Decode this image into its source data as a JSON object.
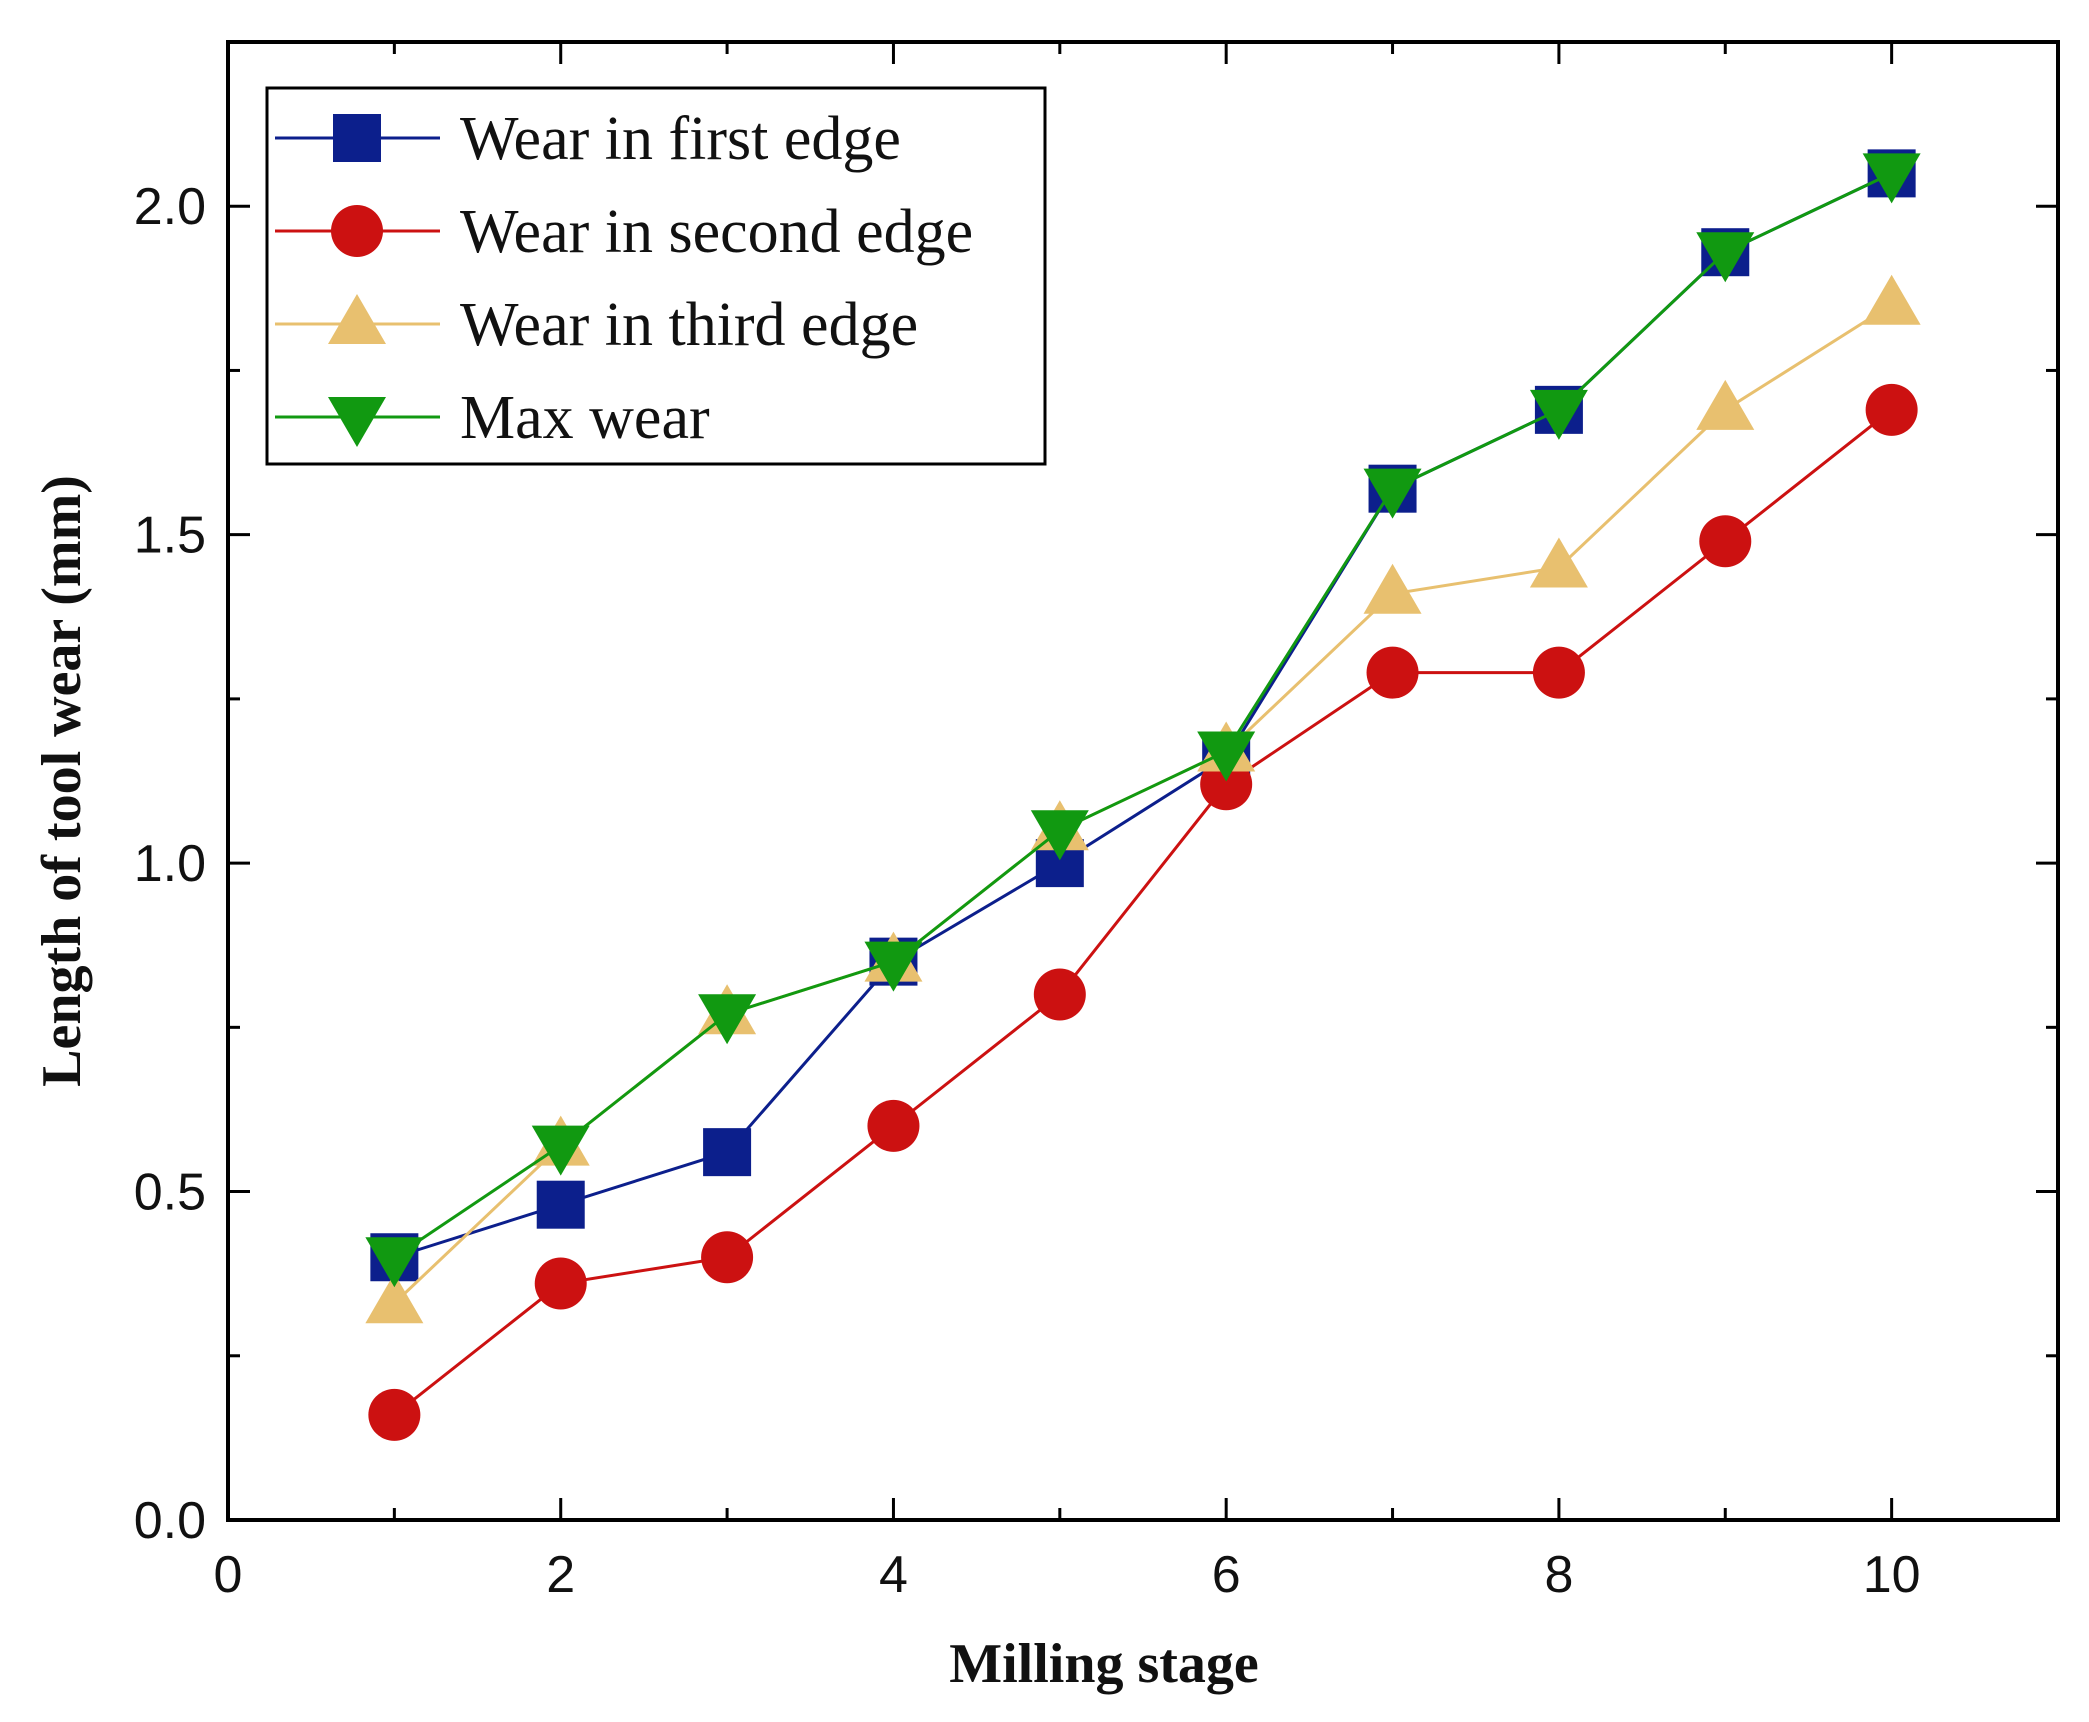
{
  "chart_data": {
    "type": "line",
    "title": "",
    "xlabel": "Milling stage",
    "ylabel": "Length of tool wear (mm)",
    "xlim": [
      0,
      11
    ],
    "ylim": [
      0,
      2.25
    ],
    "xticks": [
      0,
      2,
      4,
      6,
      8,
      10
    ],
    "yticks": [
      0.0,
      0.5,
      1.0,
      1.5,
      2.0
    ],
    "xtick_labels": [
      "0",
      "2",
      "4",
      "6",
      "8",
      "10"
    ],
    "ytick_labels": [
      "0.0",
      "0.5",
      "1.0",
      "1.5",
      "2.0"
    ],
    "x": [
      1,
      2,
      3,
      4,
      5,
      6,
      7,
      8,
      9,
      10
    ],
    "legend_position": "top-left",
    "series": [
      {
        "name": "Wear in first edge",
        "marker": "square",
        "color": "#0c1f8c",
        "values": [
          0.4,
          0.48,
          0.56,
          0.85,
          1.0,
          1.16,
          1.57,
          1.69,
          1.93,
          2.05
        ]
      },
      {
        "name": "Wear in second edge",
        "marker": "circle",
        "color": "#cc1111",
        "values": [
          0.16,
          0.36,
          0.4,
          0.6,
          0.8,
          1.12,
          1.29,
          1.29,
          1.49,
          1.69
        ]
      },
      {
        "name": "Wear in third edge",
        "marker": "triangle-up",
        "color": "#e8c06f",
        "values": [
          0.33,
          0.57,
          0.77,
          0.85,
          1.05,
          1.17,
          1.41,
          1.45,
          1.69,
          1.85
        ]
      },
      {
        "name": "Max wear",
        "marker": "triangle-down",
        "color": "#119911",
        "values": [
          0.4,
          0.57,
          0.77,
          0.85,
          1.05,
          1.17,
          1.57,
          1.69,
          1.93,
          2.05
        ]
      }
    ]
  }
}
